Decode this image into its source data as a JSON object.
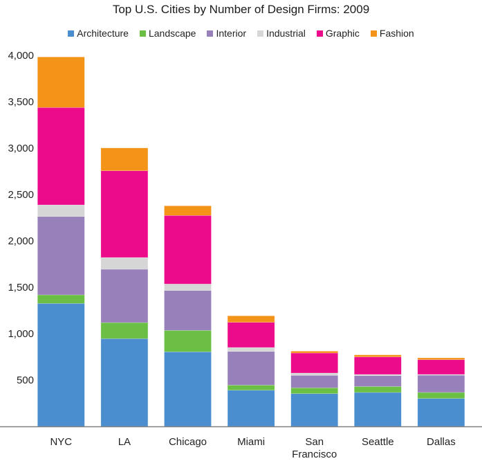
{
  "chart_data": {
    "type": "bar",
    "stacked": true,
    "title": "Top U.S. Cities by Number of Design Firms: 2009",
    "xlabel": "",
    "ylabel": "",
    "ylim": [
      0,
      4000
    ],
    "yticks": [
      500,
      1000,
      1500,
      2000,
      2500,
      3000,
      3500,
      4000
    ],
    "ytick_labels": [
      "500",
      "1,000",
      "1,500",
      "2,000",
      "2,500",
      "3,000",
      "3,500",
      "4,000"
    ],
    "grid": false,
    "legend_position": "top",
    "categories": [
      [
        "NYC"
      ],
      [
        "LA"
      ],
      [
        "Chicago"
      ],
      [
        "Miami"
      ],
      [
        "San",
        "Francisco"
      ],
      [
        "Seattle"
      ],
      [
        "Dallas"
      ]
    ],
    "series": [
      {
        "name": "Architecture",
        "color": "#4a8ecf",
        "values": [
          1326,
          946,
          804,
          390,
          353,
          366,
          301
        ]
      },
      {
        "name": "Landscape",
        "color": "#6cbf45",
        "values": [
          92,
          173,
          231,
          55,
          63,
          64,
          65
        ]
      },
      {
        "name": "Interior",
        "color": "#9880bb",
        "values": [
          845,
          575,
          430,
          363,
          134,
          117,
          186
        ]
      },
      {
        "name": "Industrial",
        "color": "#d6d6d6",
        "values": [
          125,
          127,
          70,
          43,
          25,
          13,
          8
        ]
      },
      {
        "name": "Graphic",
        "color": "#ec0b8a",
        "values": [
          1050,
          935,
          739,
          271,
          216,
          189,
          159
        ]
      },
      {
        "name": "Fashion",
        "color": "#f39318",
        "values": [
          545,
          246,
          104,
          70,
          20,
          22,
          20
        ]
      }
    ]
  }
}
